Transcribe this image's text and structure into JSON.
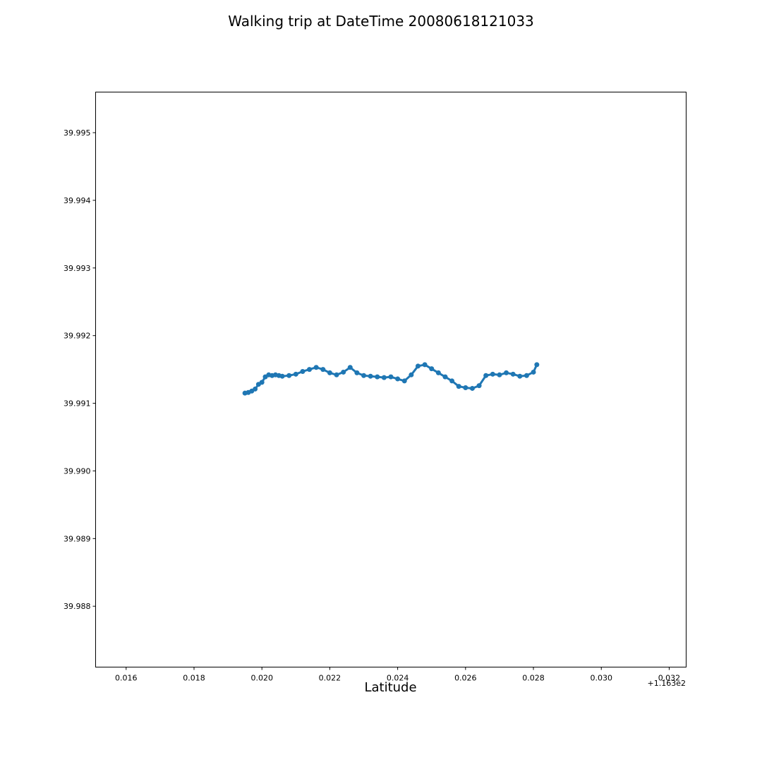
{
  "chart_data": {
    "type": "scatter",
    "title": "Walking trip at DateTime 20080618121033",
    "xlabel": "Latitude",
    "ylabel": "",
    "x_offset_label": "+1.163e2",
    "xlim": [
      116.3151,
      116.3325
    ],
    "ylim": [
      39.9871,
      39.9956
    ],
    "x_ticks": [
      0.016,
      0.018,
      0.02,
      0.022,
      0.024,
      0.026,
      0.028,
      0.03,
      0.032
    ],
    "x_tick_labels": [
      "0.016",
      "0.018",
      "0.020",
      "0.022",
      "0.024",
      "0.026",
      "0.028",
      "0.030",
      "0.032"
    ],
    "y_ticks": [
      39.988,
      39.989,
      39.99,
      39.991,
      39.992,
      39.993,
      39.994,
      39.995
    ],
    "y_tick_labels": [
      "39.988",
      "39.989",
      "39.990",
      "39.991",
      "39.992",
      "39.993",
      "39.994",
      "39.995"
    ],
    "grid": false,
    "color": "#1f77b4",
    "series": [
      {
        "x": [
          116.3195,
          116.3196,
          116.3197,
          116.3198,
          116.3199,
          116.32,
          116.3201,
          116.3202,
          116.3203,
          116.3204,
          116.3205,
          116.3206,
          116.3208,
          116.321,
          116.3212,
          116.3214,
          116.3216,
          116.3218,
          116.322,
          116.3222,
          116.3224,
          116.3226,
          116.3228,
          116.323,
          116.3232,
          116.3234,
          116.3236,
          116.3238,
          116.324,
          116.3242,
          116.3244,
          116.3246,
          116.3248,
          116.325,
          116.3252,
          116.3254,
          116.3256,
          116.3258,
          116.326,
          116.3262,
          116.3264,
          116.3266,
          116.3268,
          116.327,
          116.3272,
          116.3274,
          116.3276,
          116.3278,
          116.328,
          116.3281
        ],
        "y": [
          39.99115,
          39.99116,
          39.99118,
          39.99121,
          39.99128,
          39.99131,
          39.99139,
          39.99142,
          39.99141,
          39.99142,
          39.99141,
          39.9914,
          39.99141,
          39.99143,
          39.99147,
          39.9915,
          39.99153,
          39.9915,
          39.99145,
          39.99142,
          39.99146,
          39.99153,
          39.99145,
          39.99141,
          39.9914,
          39.99139,
          39.99138,
          39.99139,
          39.99136,
          39.99133,
          39.99142,
          39.99155,
          39.99157,
          39.99151,
          39.99145,
          39.99139,
          39.99133,
          39.99125,
          39.99123,
          39.99122,
          39.99126,
          39.99141,
          39.99143,
          39.99142,
          39.99145,
          39.99143,
          39.9914,
          39.99141,
          39.99146,
          39.99157
        ]
      }
    ]
  }
}
